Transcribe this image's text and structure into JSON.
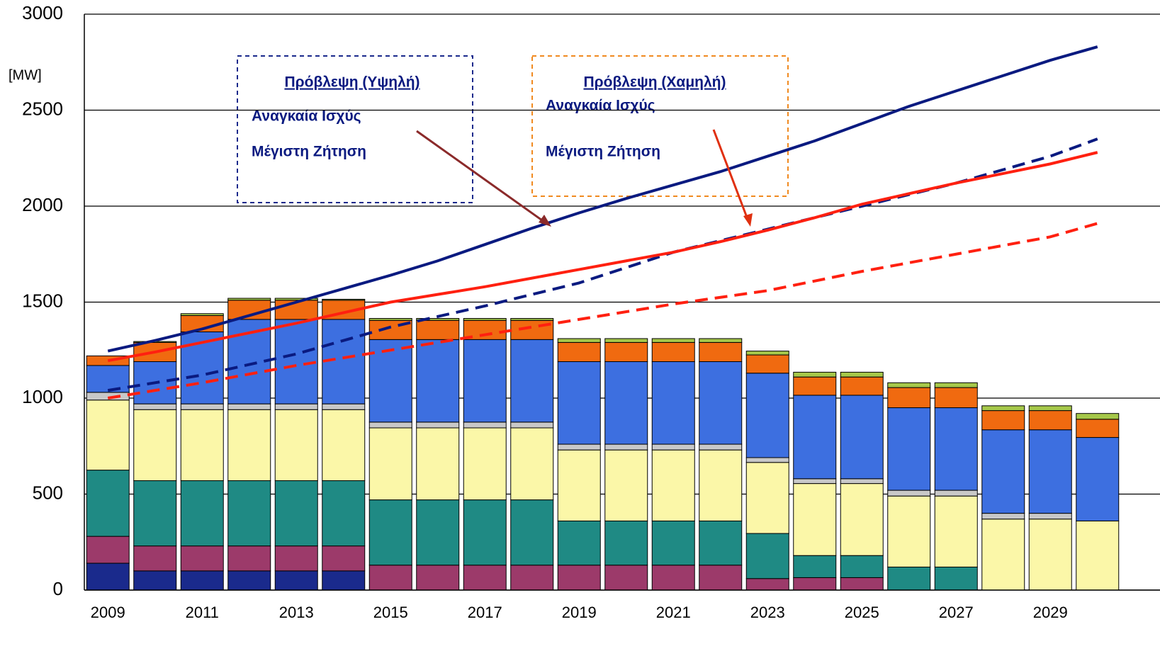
{
  "chart_data": {
    "type": "bar",
    "stacked": true,
    "y_label": "[MW]",
    "categories": [
      "2009",
      null,
      "2011",
      null,
      "2013",
      null,
      "2015",
      null,
      "2017",
      null,
      "2019",
      null,
      "2021",
      null,
      "2023",
      null,
      "2025",
      null,
      "2027",
      null,
      "2029",
      null
    ],
    "ylim": [
      0,
      3000
    ],
    "yticks": [
      0,
      500,
      1000,
      1500,
      2000,
      2500,
      3000
    ],
    "grid": true,
    "series": [
      {
        "color": "#1a2a8c",
        "values": [
          140,
          100,
          100,
          100,
          100,
          100,
          0,
          0,
          0,
          0,
          0,
          0,
          0,
          0,
          0,
          0,
          0,
          0,
          0,
          0,
          0,
          0
        ]
      },
      {
        "color": "#9c3a6a",
        "values": [
          140,
          130,
          130,
          130,
          130,
          130,
          130,
          130,
          130,
          130,
          130,
          130,
          130,
          130,
          60,
          65,
          65,
          0,
          0,
          0,
          0,
          0
        ]
      },
      {
        "color": "#1f8a84",
        "values": [
          345,
          340,
          340,
          340,
          340,
          340,
          340,
          340,
          340,
          340,
          230,
          230,
          230,
          230,
          235,
          115,
          115,
          120,
          120,
          0,
          0,
          0
        ]
      },
      {
        "color": "#fbf7a8",
        "values": [
          365,
          370,
          370,
          370,
          370,
          370,
          375,
          375,
          375,
          375,
          370,
          370,
          370,
          370,
          370,
          375,
          375,
          370,
          370,
          370,
          370,
          360
        ]
      },
      {
        "color": "#c8c8c8",
        "values": [
          40,
          30,
          30,
          30,
          30,
          30,
          30,
          30,
          30,
          30,
          30,
          30,
          30,
          30,
          25,
          25,
          25,
          30,
          30,
          30,
          30,
          0
        ]
      },
      {
        "color": "#3d6fe0",
        "values": [
          140,
          220,
          375,
          440,
          440,
          440,
          430,
          430,
          430,
          430,
          430,
          430,
          430,
          430,
          440,
          435,
          435,
          430,
          430,
          435,
          435,
          435
        ]
      },
      {
        "color": "#f06a10",
        "values": [
          50,
          100,
          85,
          100,
          100,
          100,
          100,
          100,
          100,
          100,
          100,
          100,
          100,
          100,
          95,
          95,
          95,
          105,
          105,
          100,
          100,
          95
        ]
      },
      {
        "color": "#a6c84a",
        "values": [
          0,
          5,
          10,
          10,
          10,
          5,
          10,
          10,
          10,
          10,
          20,
          20,
          20,
          20,
          20,
          25,
          25,
          25,
          25,
          25,
          25,
          30
        ]
      }
    ],
    "lines": [
      {
        "color": "#0a1a80",
        "style": "solid",
        "values": [
          1245,
          1300,
          1360,
          1430,
          1500,
          1570,
          1640,
          1715,
          1800,
          1885,
          1965,
          2040,
          2110,
          2180,
          2260,
          2340,
          2430,
          2520,
          2600,
          2680,
          2760,
          2830
        ]
      },
      {
        "color": "#0a1a80",
        "style": "dashed",
        "values": [
          1040,
          1080,
          1120,
          1175,
          1230,
          1300,
          1370,
          1425,
          1480,
          1540,
          1600,
          1680,
          1760,
          1820,
          1880,
          1940,
          2000,
          2060,
          2120,
          2190,
          2260,
          2350
        ]
      },
      {
        "color": "#ff2010",
        "style": "solid",
        "values": [
          1195,
          1240,
          1290,
          1340,
          1390,
          1445,
          1500,
          1540,
          1580,
          1625,
          1670,
          1715,
          1760,
          1815,
          1875,
          1940,
          2010,
          2065,
          2120,
          2170,
          2220,
          2280
        ]
      },
      {
        "color": "#ff2010",
        "style": "dashed",
        "values": [
          1000,
          1040,
          1080,
          1125,
          1170,
          1210,
          1250,
          1290,
          1330,
          1370,
          1410,
          1450,
          1490,
          1525,
          1560,
          1610,
          1660,
          1705,
          1750,
          1795,
          1840,
          1910
        ]
      }
    ],
    "legend_boxes": [
      {
        "title": "Πρόβλεψη (Υψηλή)",
        "items": [
          "Αναγκαία Ισχύς",
          "Μέγιστη Ζήτηση"
        ]
      },
      {
        "title": "Πρόβλεψη  (Χαμηλή)",
        "items": [
          "Αναγκαία Ισχύς",
          "Μέγιστη Ζήτηση"
        ]
      }
    ]
  }
}
